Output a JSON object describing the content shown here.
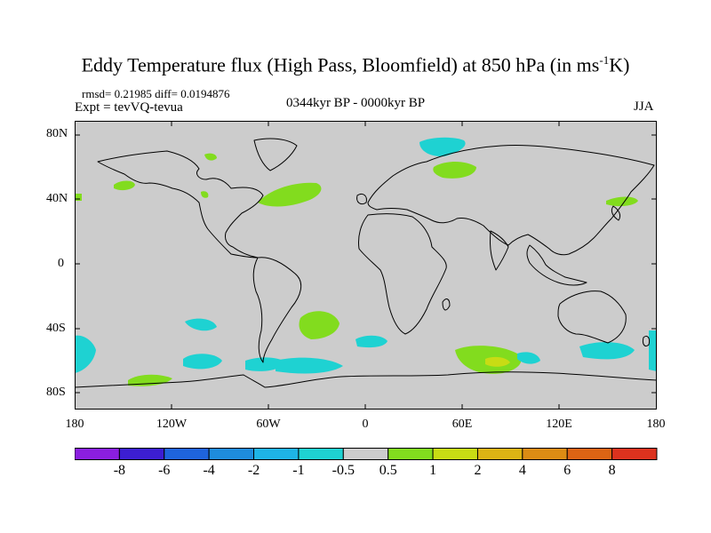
{
  "title": "Eddy Temperature flux (High Pass, Bloomfield) at 850 hPa (in ms",
  "title_sup": "-1",
  "title_end": "K)",
  "stats": "rmsd= 0.21985 diff= 0.0194876",
  "experiment": "Expt = tevVQ-tevua",
  "period": "0344kyr BP - 0000kyr BP",
  "season": "JJA",
  "map": {
    "projection": "cylindrical equidistant",
    "lon_range": [
      -180,
      180
    ],
    "lat_range": [
      -90,
      90
    ],
    "background_color": "#cccccc",
    "lat_labels": [
      "80N",
      "40N",
      "0",
      "40S",
      "80S"
    ],
    "lon_labels": [
      "180",
      "120W",
      "60W",
      "0",
      "60E",
      "120E",
      "180"
    ]
  },
  "colorbar": {
    "labels": [
      "-8",
      "-6",
      "-4",
      "-2",
      "-1",
      "-0.5",
      "0.5",
      "1",
      "2",
      "4",
      "6",
      "8"
    ],
    "colors": [
      "#8b1ee0",
      "#3c1ed2",
      "#1e64dc",
      "#1e8cdc",
      "#1eb4e6",
      "#1ed2d2",
      "#cccccc",
      "#82dc1e",
      "#c8dc14",
      "#dcb414",
      "#dc8c14",
      "#dc6414",
      "#dc321e"
    ]
  }
}
